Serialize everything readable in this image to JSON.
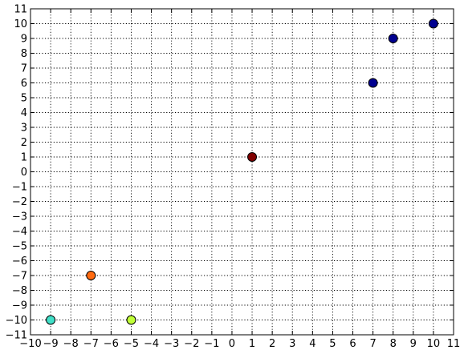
{
  "chart_data": {
    "type": "scatter",
    "title": "",
    "xlabel": "",
    "ylabel": "",
    "xlim": [
      -10,
      11
    ],
    "ylim": [
      -11,
      11
    ],
    "grid": true,
    "x_ticks": [
      -10,
      -9,
      -8,
      -7,
      -6,
      -5,
      -4,
      -3,
      -2,
      -1,
      0,
      1,
      2,
      3,
      4,
      5,
      6,
      7,
      8,
      9,
      10,
      11
    ],
    "y_ticks": [
      -11,
      -10,
      -9,
      -8,
      -7,
      -6,
      -5,
      -4,
      -3,
      -2,
      -1,
      0,
      1,
      2,
      3,
      4,
      5,
      6,
      7,
      8,
      9,
      10,
      11
    ],
    "points": [
      {
        "x": -9,
        "y": -10,
        "color": "#40e0c8"
      },
      {
        "x": -7,
        "y": -7,
        "color": "#ff6a10"
      },
      {
        "x": -5,
        "y": -10,
        "color": "#c0ff38"
      },
      {
        "x": 1,
        "y": 1,
        "color": "#800000"
      },
      {
        "x": 7,
        "y": 6,
        "color": "#000090"
      },
      {
        "x": 8,
        "y": 9,
        "color": "#000090"
      },
      {
        "x": 10,
        "y": 10,
        "color": "#000090"
      }
    ]
  }
}
